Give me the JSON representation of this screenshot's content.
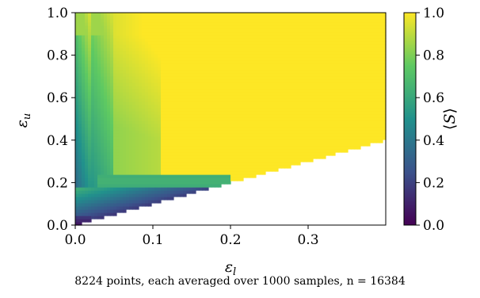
{
  "caption": "8224 points, each averaged over 1000 samples, n = 16384",
  "chart_data": {
    "type": "heatmap",
    "title": "",
    "xlabel": "εl",
    "ylabel": "εu",
    "xlim": [
      0.0,
      0.4
    ],
    "ylim": [
      0.0,
      1.0
    ],
    "xticks": [
      "0.0",
      "0.1",
      "0.2",
      "0.3"
    ],
    "yticks": [
      "0.0",
      "0.2",
      "0.4",
      "0.6",
      "0.8",
      "1.0"
    ],
    "colorbar": {
      "label": "⟨S⟩",
      "range": [
        0.0,
        1.0
      ],
      "ticks": [
        "0.0",
        "0.2",
        "0.4",
        "0.6",
        "0.8",
        "1.0"
      ],
      "colormap": "viridis"
    },
    "valid_region": "εu ≥ εl",
    "cmap_stops": [
      "#440154",
      "#3b528b",
      "#21918c",
      "#5ec962",
      "#fde725"
    ]
  }
}
